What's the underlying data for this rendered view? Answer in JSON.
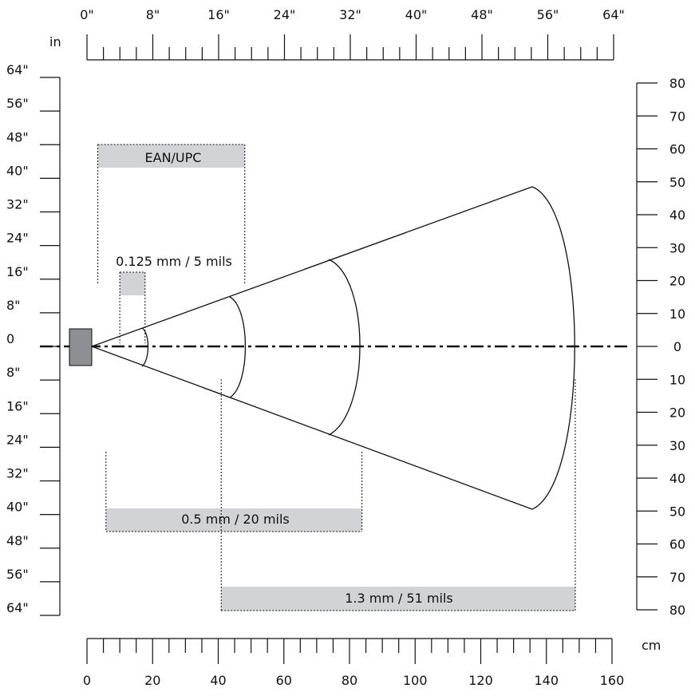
{
  "top_axis": {
    "unit": "in",
    "labels": [
      "0\"",
      "8\"",
      "16\"",
      "24\"",
      "32\"",
      "40\"",
      "48\"",
      "56\"",
      "64\""
    ]
  },
  "bottom_axis": {
    "unit": "cm",
    "labels": [
      "0",
      "20",
      "40",
      "60",
      "80",
      "100",
      "120",
      "140",
      "160"
    ]
  },
  "left_axis": {
    "labels": [
      "64\"",
      "56\"",
      "48\"",
      "40\"",
      "32\"",
      "24\"",
      "16\"",
      "8\"",
      "0",
      "8\"",
      "16\"",
      "24\"",
      "32\"",
      "40\"",
      "48\"",
      "56\"",
      "64\""
    ]
  },
  "right_axis": {
    "labels": [
      "80",
      "70",
      "60",
      "50",
      "40",
      "30",
      "20",
      "10",
      "0",
      "10",
      "20",
      "30",
      "40",
      "50",
      "60",
      "70",
      "80"
    ]
  },
  "ranges": [
    {
      "label": "EAN/UPC",
      "from_in": 3.3,
      "to_in": 48.1
    },
    {
      "label": "0.125 mm / 5 mils",
      "from_in": 10.0,
      "to_in": 17.7
    },
    {
      "label": "0.5 mm / 20 mils",
      "from_in": 5.8,
      "to_in": 83.8
    },
    {
      "label": "1.3 mm / 51 mils",
      "from_in": 40.9,
      "to_in": 148.8
    }
  ],
  "colors": {
    "line": "#111111",
    "band": "#d2d3d6",
    "scanner": "#8d8f92"
  }
}
